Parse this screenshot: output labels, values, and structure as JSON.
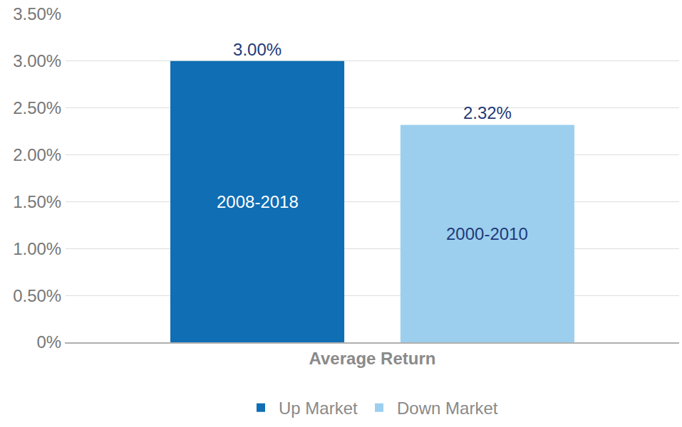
{
  "chart_data": {
    "type": "bar",
    "categories": [
      "Average Return"
    ],
    "series": [
      {
        "name": "Up Market",
        "color": "#0f6eb4",
        "values": [
          3.0
        ],
        "value_labels": [
          "3.00%"
        ]
      },
      {
        "name": "Down Market",
        "color": "#9ccfee",
        "values": [
          2.32
        ],
        "value_labels": [
          "2.32%"
        ]
      }
    ],
    "annotations": [
      {
        "text": "2008-2018",
        "series": "Up Market",
        "category": "Average Return"
      },
      {
        "text": "2000-2010",
        "series": "Down Market",
        "category": "Average Return"
      }
    ],
    "ylim": [
      0,
      3.5
    ],
    "yticks": [
      {
        "value": 0,
        "label": "0%"
      },
      {
        "value": 0.5,
        "label": "0.50%"
      },
      {
        "value": 1,
        "label": "1.00%"
      },
      {
        "value": 1.5,
        "label": "1.50%"
      },
      {
        "value": 2,
        "label": "2.00%"
      },
      {
        "value": 2.5,
        "label": "2.50%"
      },
      {
        "value": 3,
        "label": "3.00%"
      },
      {
        "value": 3.5,
        "label": "3.50%"
      }
    ],
    "grid": true,
    "data_labels": true,
    "legend": "bottom"
  }
}
